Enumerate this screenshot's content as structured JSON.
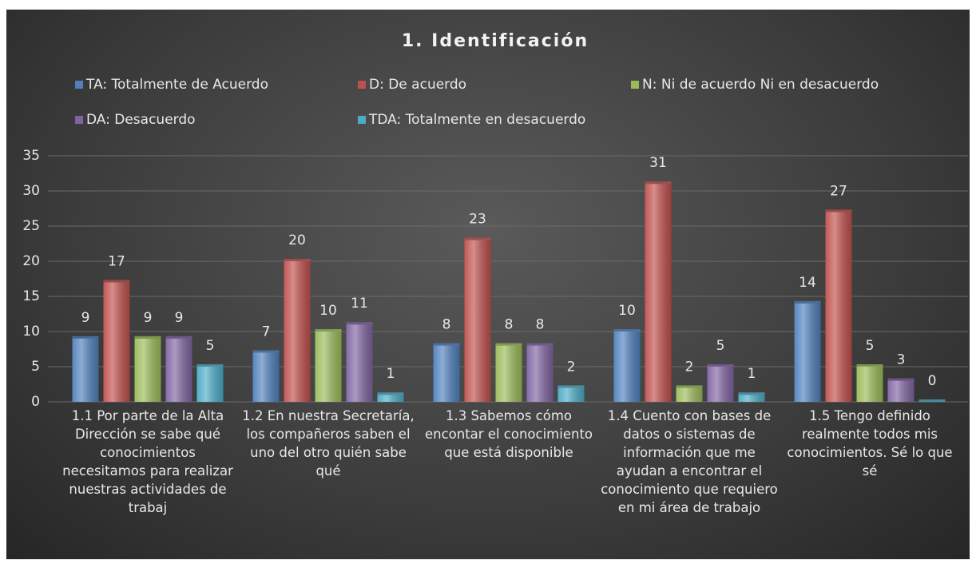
{
  "chart_data": {
    "type": "bar",
    "title": "1. Identificación",
    "categories": [
      "1.1 Por parte de la Alta Dirección se sabe qué conocimientos necesitamos para realizar nuestras actividades de trabaj",
      "1.2 En nuestra Secretaría, los compañeros saben el uno del otro quién sabe qué",
      "1.3 Sabemos cómo encontar el conocimiento que está disponible",
      "1.4 Cuento con bases de datos o sistemas de información que me ayudan a encontrar el conocimiento que requiero en mi área de trabajo",
      "1.5 Tengo definido realmente todos mis conocimientos. Sé lo que sé"
    ],
    "series": [
      {
        "name": "TA: Totalmente de Acuerdo",
        "color": "#4f81bd",
        "values": [
          9,
          7,
          8,
          10,
          14
        ]
      },
      {
        "name": "D: De acuerdo",
        "color": "#c0504d",
        "values": [
          17,
          20,
          23,
          31,
          27
        ]
      },
      {
        "name": "N: Ni de acuerdo Ni en desacuerdo",
        "color": "#9bbb59",
        "values": [
          9,
          10,
          8,
          2,
          5
        ]
      },
      {
        "name": "DA: Desacuerdo",
        "color": "#8064a2",
        "values": [
          9,
          11,
          8,
          5,
          3
        ]
      },
      {
        "name": "TDA: Totalmente en desacuerdo",
        "color": "#4bacc6",
        "values": [
          5,
          1,
          2,
          1,
          0
        ]
      }
    ],
    "ylim": [
      0,
      35
    ],
    "yticks": [
      0,
      5,
      10,
      15,
      20,
      25,
      30,
      35
    ],
    "grid": true,
    "legend": "top"
  }
}
